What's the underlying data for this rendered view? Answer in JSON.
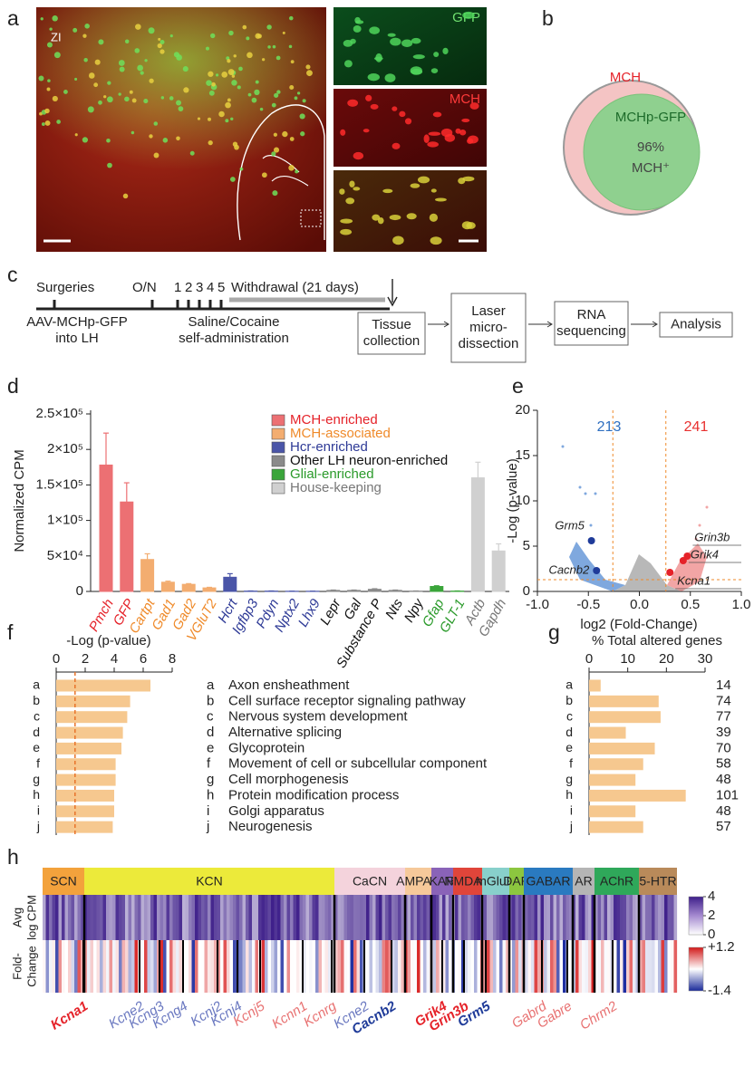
{
  "panel_labels": [
    "a",
    "b",
    "c",
    "d",
    "e",
    "f",
    "g",
    "h"
  ],
  "a": {
    "region_label": "ZI",
    "channels": [
      "GFP",
      "MCH"
    ]
  },
  "b": {
    "outer_label": "MCH",
    "inner_label": "MCHp-GFP",
    "overlap": "96%",
    "overlap_marker": "MCH⁺"
  },
  "c": {
    "surgeries": "Surgeries",
    "days": [
      "O/N",
      "1",
      "2",
      "3",
      "4",
      "5"
    ],
    "withdrawal": "Withdrawal (21 days)",
    "injection": [
      "AAV-MCHp-GFP",
      "into LH"
    ],
    "self_admin": [
      "Saline/Cocaine",
      "self-administration"
    ],
    "steps": [
      [
        "Tissue",
        "collection"
      ],
      [
        "Laser",
        "micro-",
        "dissection"
      ],
      [
        "RNA",
        "sequencing"
      ],
      [
        "Analysis"
      ]
    ]
  },
  "chart_data": [
    {
      "type": "bar",
      "y_label": "Normalized CPM",
      "categories": [
        "Pmch",
        "GFP",
        "Cartpt",
        "Gad1",
        "Gad2",
        "VGluT2",
        "Hcrt",
        "Igfbp3",
        "Pdyn",
        "Nptx2",
        "Lhx9",
        "Lepr",
        "Gal",
        "Substance P",
        "Nts",
        "Npy",
        "Gfap",
        "GLT-1",
        "Actb",
        "Gapdh"
      ],
      "values": [
        178000,
        126000,
        45000,
        13000,
        10000,
        5000,
        20000,
        500,
        500,
        300,
        300,
        1500,
        1500,
        3000,
        1500,
        500,
        7000,
        500,
        160000,
        57000
      ],
      "errors": [
        45000,
        27000,
        8000,
        1500,
        1000,
        800,
        5000,
        200,
        200,
        100,
        100,
        500,
        500,
        800,
        500,
        200,
        1000,
        200,
        22000,
        10000
      ],
      "group": [
        0,
        0,
        1,
        1,
        1,
        1,
        2,
        2,
        2,
        2,
        2,
        3,
        3,
        3,
        3,
        3,
        4,
        4,
        5,
        5
      ],
      "groups": [
        {
          "name": "MCH-enriched",
          "color": "#ec7073",
          "text_color": "#e52229"
        },
        {
          "name": "MCH-associated",
          "color": "#f3ad70",
          "text_color": "#ef8a2a"
        },
        {
          "name": "Hcr-enriched",
          "color": "#4a55a8",
          "text_color": "#2e3a96"
        },
        {
          "name": "Other LH neuron-enriched",
          "color": "#8a8a8a",
          "text_color": "#111111"
        },
        {
          "name": "Glial-enriched",
          "color": "#3aa53a",
          "text_color": "#2a9a2a"
        },
        {
          "name": "House-keeping",
          "color": "#d0d0d0",
          "text_color": "#777777"
        }
      ],
      "ylim": [
        0,
        250000
      ],
      "yticks": [
        0,
        {
          "value": 50000,
          "label": "5×10⁴"
        },
        {
          "value": 100000,
          "label": "1×10⁵"
        },
        {
          "value": 150000,
          "label": "1.5×10⁵"
        },
        {
          "value": 200000,
          "label": "2×10⁵"
        },
        {
          "value": 250000,
          "label": "2.5×10⁵"
        }
      ]
    },
    {
      "type": "scatter",
      "x_label": "log2 (Fold-Change)",
      "y_label": "-Log (p-value)",
      "down_count": 213,
      "up_count": 241,
      "down_color": "#2f6fc0",
      "up_color": "#e8302f",
      "xlim": [
        -1,
        1
      ],
      "xticks": [
        {
          "value": -1,
          "label": "-1.0"
        },
        {
          "value": -0.5,
          "label": "-0.5"
        },
        {
          "value": 0,
          "label": "0.0"
        },
        {
          "value": 0.5,
          "label": "0.5"
        },
        {
          "value": 1,
          "label": "1.0"
        }
      ],
      "ylim": [
        0,
        20
      ],
      "yticks": [
        0,
        5,
        10,
        15,
        20
      ],
      "fc_threshold": [
        -0.26,
        0.26
      ],
      "p_threshold": 1.3,
      "threshold_color": "#ef8a2a",
      "labels": [
        "Grm5",
        "Cacnb2",
        "Grin3b",
        "Grik4",
        "Kcna1"
      ],
      "x": [
        -0.47,
        -0.42,
        0.47,
        0.43,
        0.3
      ],
      "values": [
        5.6,
        2.3,
        3.9,
        3.4,
        2.1
      ],
      "colors": [
        "#1f3b99",
        "#1f3b99",
        "#e52229",
        "#e52229",
        "#e52229"
      ]
    },
    {
      "type": "bar",
      "orientation": "horizontal",
      "title": "-Log (p-value)",
      "categories": [
        "a",
        "b",
        "c",
        "d",
        "e",
        "f",
        "g",
        "h",
        "i",
        "j"
      ],
      "values": [
        6.5,
        5.1,
        4.9,
        4.6,
        4.5,
        4.1,
        4.1,
        4.0,
        4.0,
        3.9
      ],
      "xlim": [
        0,
        8
      ],
      "xticks": [
        0,
        2,
        4,
        6,
        8
      ],
      "threshold": 1.3,
      "threshold_color": "#e8732a",
      "color": "#f6c88f",
      "terms": [
        "Axon ensheathment",
        "Cell surface receptor signaling pathway",
        "Nervous system development",
        "Alternative splicing",
        "Glycoprotein",
        "Movement of cell or subcellular component",
        "Cell morphogenesis",
        "Protein modification process",
        "Golgi apparatus",
        "Neurogenesis"
      ]
    },
    {
      "type": "bar",
      "orientation": "horizontal",
      "title": "% Total altered genes",
      "categories": [
        "a",
        "b",
        "c",
        "d",
        "e",
        "f",
        "g",
        "h",
        "i",
        "j"
      ],
      "values": [
        3,
        18,
        18.5,
        9.5,
        17,
        14,
        12,
        25,
        12,
        14
      ],
      "counts": [
        14,
        74,
        77,
        39,
        70,
        58,
        48,
        101,
        48,
        57
      ],
      "xlim": [
        0,
        30
      ],
      "xticks": [
        0,
        10,
        20,
        30
      ],
      "color": "#f6c88f"
    }
  ],
  "heatmap": {
    "groups": [
      {
        "name": "SCN",
        "color": "#f3a23c"
      },
      {
        "name": "KCN",
        "color": "#ecea3a"
      },
      {
        "name": "CaCN",
        "color": "#f4d3dc"
      },
      {
        "name": "AMPAR",
        "color": "#f6c99a"
      },
      {
        "name": "KAR",
        "color": "#8a63b8"
      },
      {
        "name": "NMDAR",
        "color": "#e0453a"
      },
      {
        "name": "mGluR",
        "color": "#88d0cb"
      },
      {
        "name": "DAR",
        "color": "#8cc63f"
      },
      {
        "name": "GABAR",
        "color": "#2a7ac0"
      },
      {
        "name": "AR",
        "color": "#b5b5b5"
      },
      {
        "name": "AChR",
        "color": "#2fa85a"
      },
      {
        "name": "5-HTR",
        "color": "#b98a5a"
      }
    ],
    "row_labels": [
      [
        "Avg",
        "log CPM"
      ],
      [
        "Fold-",
        "Change"
      ]
    ],
    "cpm_scale": [
      4,
      2,
      0
    ],
    "fc_scale": [
      {
        "value": 1.2,
        "label": "+1.2"
      },
      -1.4
    ],
    "genes": [
      {
        "name": "Kcna1",
        "color": "#e52229",
        "bold": true
      },
      {
        "name": "Kcne2",
        "color": "#6a78c0",
        "bold": false
      },
      {
        "name": "Kcng3",
        "color": "#6a78c0",
        "bold": false
      },
      {
        "name": "Kcng4",
        "color": "#6a78c0",
        "bold": false
      },
      {
        "name": "Kcnj2",
        "color": "#6a78c0",
        "bold": false
      },
      {
        "name": "Kcnj4",
        "color": "#6a78c0",
        "bold": false
      },
      {
        "name": "Kcnj5",
        "color": "#e87272",
        "bold": false
      },
      {
        "name": "Kcnn1",
        "color": "#e87272",
        "bold": false
      },
      {
        "name": "Kcnrg",
        "color": "#e87272",
        "bold": false
      },
      {
        "name": "Kcne2",
        "color": "#6a78c0",
        "bold": false
      },
      {
        "name": "Cacnb2",
        "color": "#1f3b99",
        "bold": true
      },
      {
        "name": "Grik4",
        "color": "#e52229",
        "bold": true
      },
      {
        "name": "Grin3b",
        "color": "#e52229",
        "bold": true
      },
      {
        "name": "Grm5",
        "color": "#1f3b99",
        "bold": true
      },
      {
        "name": "Gabrd",
        "color": "#e87272",
        "bold": false
      },
      {
        "name": "Gabre",
        "color": "#e87272",
        "bold": false
      },
      {
        "name": "Chrm2",
        "color": "#e87272",
        "bold": false
      }
    ]
  }
}
